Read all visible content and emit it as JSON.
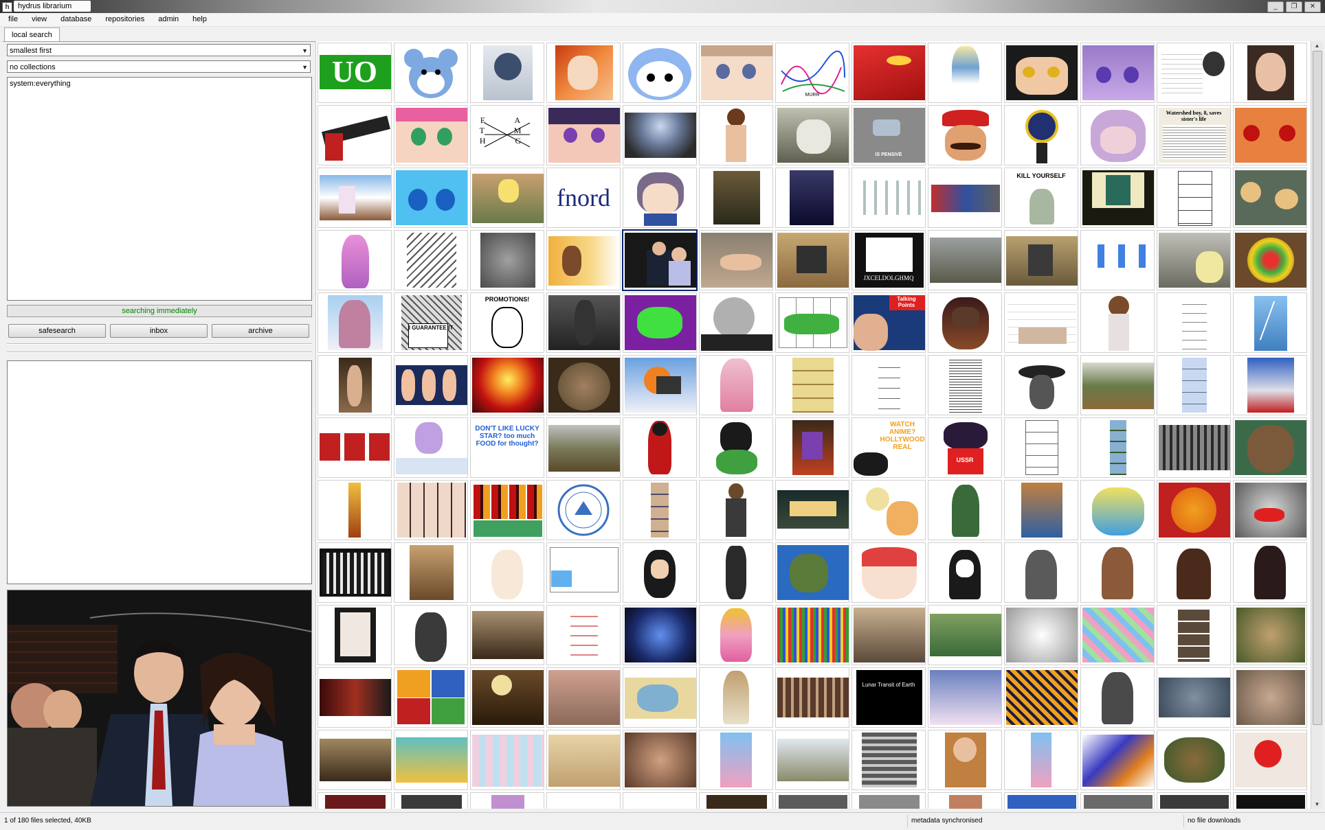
{
  "window": {
    "title": "hydrus librarium",
    "buttons": [
      "_",
      "❐",
      "✕"
    ]
  },
  "menu": [
    "file",
    "view",
    "database",
    "repositories",
    "admin",
    "help"
  ],
  "search": {
    "tab_label": "local search",
    "sort": "smallest first",
    "collect": "no collections",
    "tags": [
      "system:everything"
    ],
    "status": "searching immediately",
    "buttons": {
      "safesearch": "safesearch",
      "inbox": "inbox",
      "archive": "archive"
    }
  },
  "thumb_text": {
    "uo": "UO",
    "fnord": "fnord",
    "murr": "MURR",
    "pensive": "IS PENSIVE",
    "kill": "KILL YOURSELF",
    "guarantee": "I GUARANTEE IT",
    "promotions": "PROMOTIONS!",
    "talking": "Talking Points",
    "watch": "WATCH ANIME? HOLLYWOOD REAL",
    "ussr": "USSR",
    "jxceldolghmq": "JXCELDOLGHMQ",
    "luna": "Lunar Transit of Earth",
    "lucky": "DON'T LIKE LUCKY STAR? too much FOOD for thought?",
    "eamht": "E A T M H G",
    "watershed": "Watershed boy, 8, saves sister's life"
  },
  "status": {
    "selection": "1 of 180 files selected, 40KB",
    "metadata": "metadata synchronised",
    "downloads": "no file downloads"
  }
}
